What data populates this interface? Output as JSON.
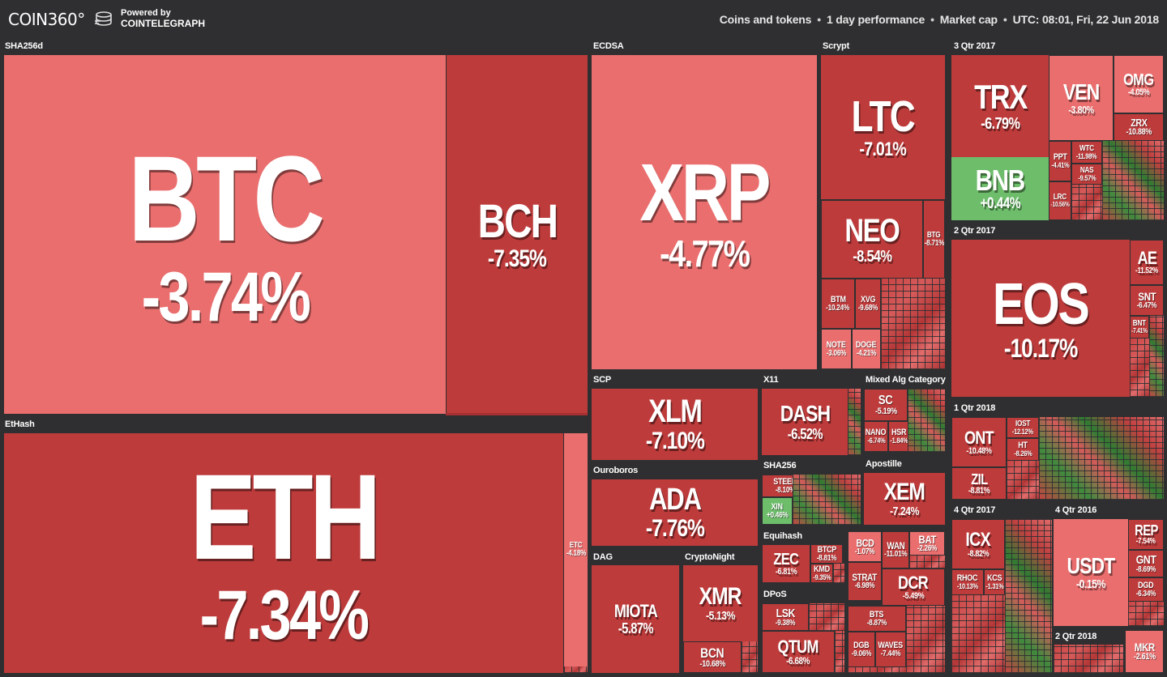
{
  "header": {
    "logo": "COIN360°",
    "powered_line1": "Powered by",
    "powered_line2": "COINTELEGRAPH",
    "coins_and_tokens": "Coins and tokens",
    "performance": "1 day performance",
    "market_cap": "Market cap",
    "timestamp": "UTC: 08:01, Fri, 22 Jun 2018",
    "separator": "•"
  },
  "categories": {
    "sha256d": "SHA256d",
    "ethash": "EtHash",
    "ecdsa": "ECDSA",
    "scrypt": "Scrypt",
    "q3_2017": "3 Qtr 2017",
    "q2_2017": "2 Qtr 2017",
    "scp": "SCP",
    "x11": "X11",
    "mixed": "Mixed Alg Category",
    "q1_2018": "1 Qtr 2018",
    "ouroboros": "Ouroboros",
    "sha256": "SHA256",
    "apostille": "Apostille",
    "q4_2017": "4 Qtr 2017",
    "q4_2016": "4 Qtr 2016",
    "dag": "DAG",
    "cryptonight": "CryptoNight",
    "equihash": "Equihash",
    "dpos": "DPoS",
    "q2_2018": "2 Qtr 2018"
  },
  "coins": {
    "btc": {
      "symbol": "BTC",
      "change": "-3.74%"
    },
    "bch": {
      "symbol": "BCH",
      "change": "-7.35%"
    },
    "eth": {
      "symbol": "ETH",
      "change": "-7.34%"
    },
    "etc": {
      "symbol": "ETC",
      "change": "-4.18%"
    },
    "xrp": {
      "symbol": "XRP",
      "change": "-4.77%"
    },
    "ltc": {
      "symbol": "LTC",
      "change": "-7.01%"
    },
    "neo": {
      "symbol": "NEO",
      "change": "-8.54%"
    },
    "btg": {
      "symbol": "BTG",
      "change": "-8.71%"
    },
    "btm": {
      "symbol": "BTM",
      "change": "-10.24%"
    },
    "xvg": {
      "symbol": "XVG",
      "change": "-9.68%"
    },
    "note": {
      "symbol": "NOTE",
      "change": "-3.06%"
    },
    "doge": {
      "symbol": "DOGE",
      "change": "-4.21%"
    },
    "trx": {
      "symbol": "TRX",
      "change": "-6.79%"
    },
    "ven": {
      "symbol": "VEN",
      "change": "-3.80%"
    },
    "omg": {
      "symbol": "OMG",
      "change": "-4.05%"
    },
    "zrx": {
      "symbol": "ZRX",
      "change": "-10.88%"
    },
    "bnb": {
      "symbol": "BNB",
      "change": "+0.44%"
    },
    "ppt": {
      "symbol": "PPT",
      "change": "-4.41%"
    },
    "wtc": {
      "symbol": "WTC",
      "change": "-11.98%"
    },
    "nas": {
      "symbol": "NAS",
      "change": "-9.57%"
    },
    "lrc": {
      "symbol": "LRC",
      "change": "-10.56%"
    },
    "eos": {
      "symbol": "EOS",
      "change": "-10.17%"
    },
    "ae": {
      "symbol": "AE",
      "change": "-11.52%"
    },
    "snt": {
      "symbol": "SNT",
      "change": "-6.47%"
    },
    "bnt": {
      "symbol": "BNT",
      "change": "-7.41%"
    },
    "xlm": {
      "symbol": "XLM",
      "change": "-7.10%"
    },
    "dash": {
      "symbol": "DASH",
      "change": "-6.52%"
    },
    "sc": {
      "symbol": "SC",
      "change": "-5.19%"
    },
    "nano": {
      "symbol": "NANO",
      "change": "-6.74%"
    },
    "hsr": {
      "symbol": "HSR",
      "change": "-1.84%"
    },
    "ont": {
      "symbol": "ONT",
      "change": "-10.48%"
    },
    "zil": {
      "symbol": "ZIL",
      "change": "-8.81%"
    },
    "iost": {
      "symbol": "IOST",
      "change": "-12.12%"
    },
    "ht": {
      "symbol": "HT",
      "change": "-8.26%"
    },
    "ada": {
      "symbol": "ADA",
      "change": "-7.76%"
    },
    "steem": {
      "symbol": "STEEM",
      "change": "-8.10%"
    },
    "xin": {
      "symbol": "XIN",
      "change": "+0.46%"
    },
    "xem": {
      "symbol": "XEM",
      "change": "-7.24%"
    },
    "icx": {
      "symbol": "ICX",
      "change": "-8.82%"
    },
    "rhoc": {
      "symbol": "RHOC",
      "change": "-10.13%"
    },
    "kcs": {
      "symbol": "KCS",
      "change": "-1.31%"
    },
    "usdt": {
      "symbol": "USDT",
      "change": "-0.15%"
    },
    "rep": {
      "symbol": "REP",
      "change": "-7.54%"
    },
    "gnt": {
      "symbol": "GNT",
      "change": "-8.69%"
    },
    "miota": {
      "symbol": "MIOTA",
      "change": "-5.87%"
    },
    "xmr": {
      "symbol": "XMR",
      "change": "-5.13%"
    },
    "bcn": {
      "symbol": "BCN",
      "change": "-10.68%"
    },
    "zec": {
      "symbol": "ZEC",
      "change": "-6.81%"
    },
    "btcp": {
      "symbol": "BTCP",
      "change": "-8.81%"
    },
    "kmd": {
      "symbol": "KMD",
      "change": "-9.35%"
    },
    "bcd": {
      "symbol": "BCD",
      "change": "-1.07%"
    },
    "strat": {
      "symbol": "STRAT",
      "change": "-6.98%"
    },
    "wan": {
      "symbol": "WAN",
      "change": "-11.01%"
    },
    "bat": {
      "symbol": "BAT",
      "change": "-2.26%"
    },
    "dcr": {
      "symbol": "DCR",
      "change": "-5.49%"
    },
    "lsk": {
      "symbol": "LSK",
      "change": "-9.38%"
    },
    "qtum": {
      "symbol": "QTUM",
      "change": "-6.68%"
    },
    "bts": {
      "symbol": "BTS",
      "change": "-8.87%"
    },
    "dgb": {
      "symbol": "DGB",
      "change": "-9.06%"
    },
    "waves": {
      "symbol": "WAVES",
      "change": "-7.44%"
    },
    "mkr": {
      "symbol": "MKR",
      "change": "-2.61%"
    },
    "dgd": {
      "symbol": "DGD",
      "change": "-6.34%"
    }
  }
}
